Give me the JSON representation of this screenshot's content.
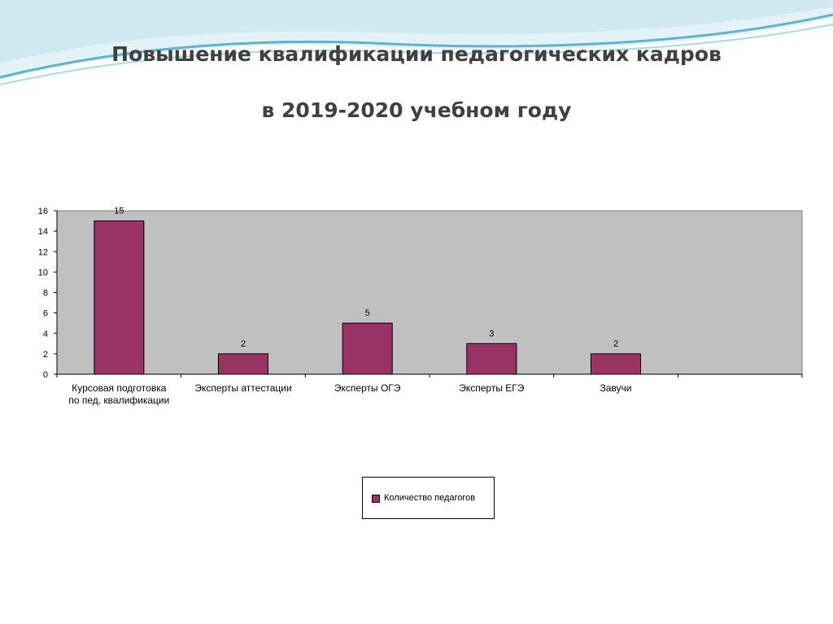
{
  "slide": {
    "title_line1": "Повышение квалификации педагогических кадров",
    "title_line2": "в 2019-2020 учебном году"
  },
  "colors": {
    "bar": "#993366",
    "plot_background": "#c0c0c0",
    "wave_light": "#cfe9f1",
    "wave_dark": "#5fb4cc"
  },
  "chart_data": {
    "type": "bar",
    "categories": [
      [
        "Курсовая подготовка",
        "по пед. квалификации"
      ],
      [
        "Эксперты аттестации"
      ],
      [
        "Эксперты ОГЭ"
      ],
      [
        "Эксперты ЕГЭ"
      ],
      [
        "Завучи"
      ],
      [
        ""
      ]
    ],
    "series": [
      {
        "name": "Количество педагогов",
        "values": [
          15,
          2,
          5,
          3,
          2,
          null
        ]
      }
    ],
    "data_labels": [
      "15",
      "2",
      "5",
      "3",
      "2",
      ""
    ],
    "ylim": [
      0,
      16
    ],
    "yticks": [
      0,
      2,
      4,
      6,
      8,
      10,
      12,
      14,
      16
    ],
    "xlabel": "",
    "ylabel": "",
    "grid": false,
    "legend": "bottom-center"
  }
}
